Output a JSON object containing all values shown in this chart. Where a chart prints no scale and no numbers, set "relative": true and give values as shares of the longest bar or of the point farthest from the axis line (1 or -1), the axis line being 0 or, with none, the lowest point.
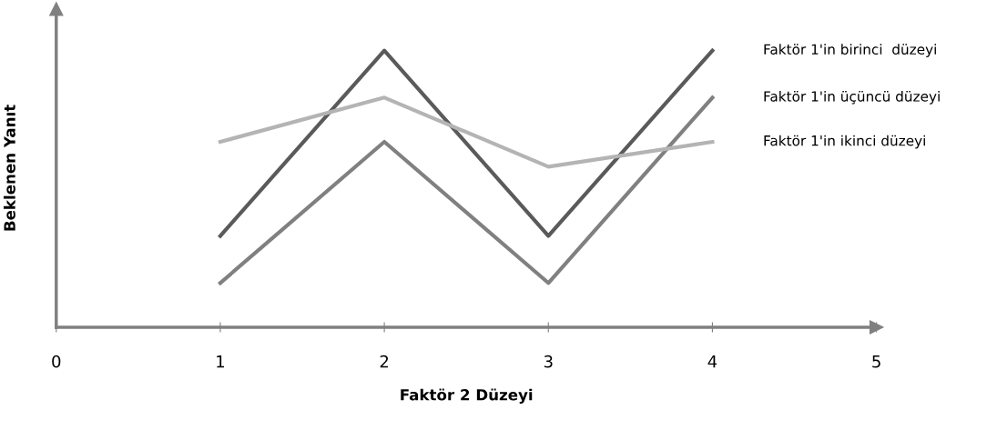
{
  "chart_data": {
    "type": "line",
    "xlabel": "Faktör 2 Düzeyi",
    "ylabel": "Beklenen Yanıt",
    "relative": true,
    "x": [
      1,
      2,
      3,
      4
    ],
    "xlim": [
      0,
      5
    ],
    "xticks": [
      0,
      1,
      2,
      3,
      4,
      5
    ],
    "grid": false,
    "legend": false,
    "marker": "none",
    "line_style": "solid",
    "series": [
      {
        "name": "Faktör 1'in birinci  düzeyi",
        "color": "#5a5a5a",
        "values": [
          0.33,
          1,
          0.33,
          1
        ]
      },
      {
        "name": "Faktör 1'in üçüncü düzeyi",
        "color": "#808080",
        "values": [
          0.16,
          0.67,
          0.16,
          0.83
        ]
      },
      {
        "name": "Faktör 1'in ikinci düzeyi",
        "color": "#b4b4b4",
        "values": [
          0.67,
          0.83,
          0.58,
          0.67
        ]
      }
    ]
  }
}
